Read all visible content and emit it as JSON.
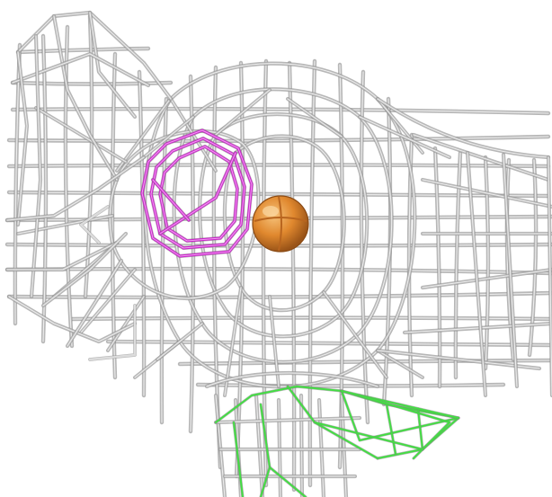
{
  "viewport": {
    "background": "#ffffff",
    "wire_color": "#b8b8b8",
    "wire_highlight": "#eeeeee",
    "wire_shadow": "#7a7a7a"
  },
  "selection": {
    "outline_color": "#cc22cc"
  },
  "pivot": {
    "color": "#e0882e",
    "highlight": "#f6c27a"
  },
  "neck_mesh": {
    "color": "#44dd44"
  }
}
